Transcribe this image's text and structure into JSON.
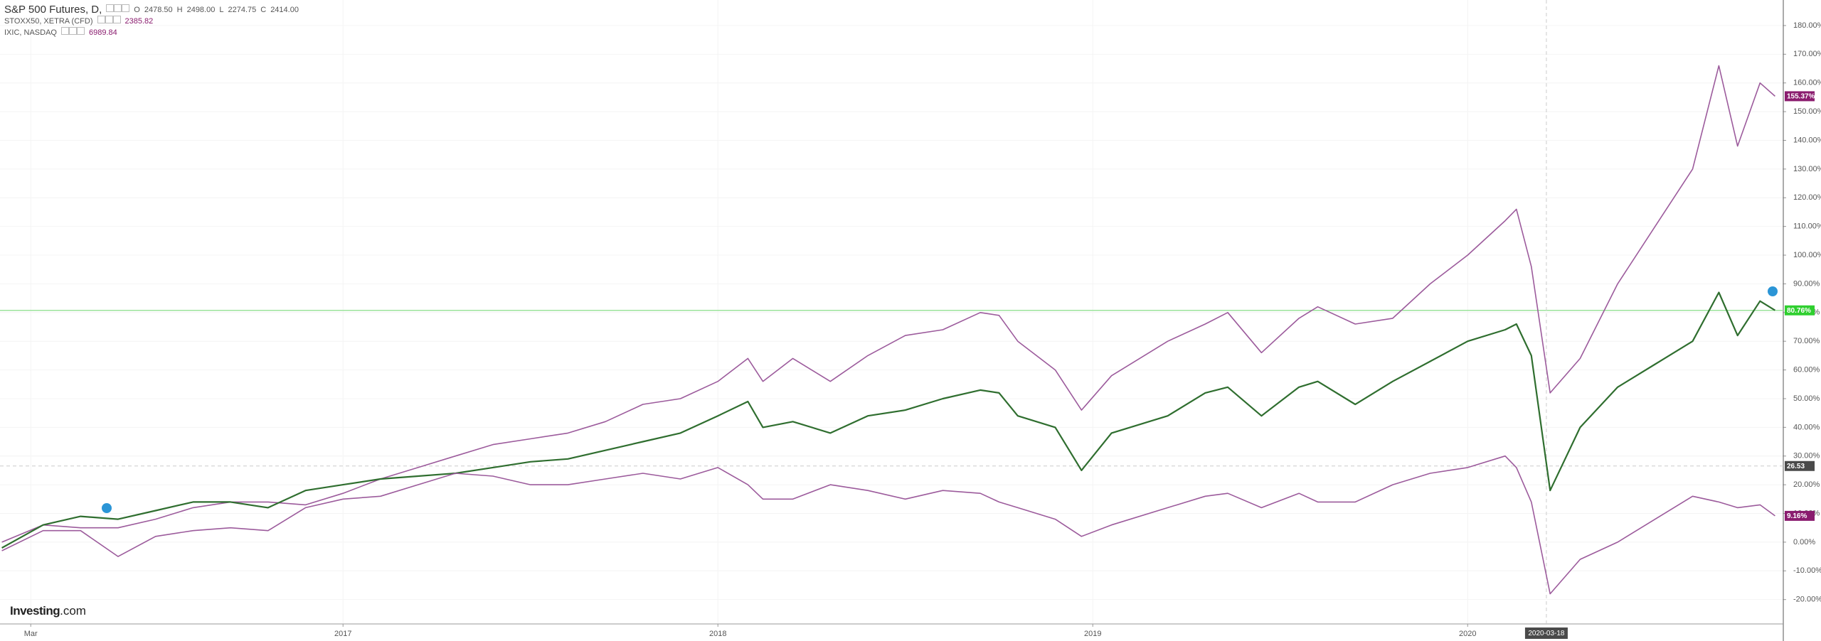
{
  "chart_data": {
    "type": "line",
    "legend": [
      {
        "name": "S&P 500 Futures, D,",
        "fields": [
          {
            "label": "O",
            "value": "2478.50"
          },
          {
            "label": "H",
            "value": "2498.00"
          },
          {
            "label": "L",
            "value": "2274.75"
          },
          {
            "label": "C",
            "value": "2414.00"
          }
        ]
      },
      {
        "name": "STOXX50, XETRA (CFD)",
        "fields": [
          {
            "value": "2385.82"
          }
        ]
      },
      {
        "name": "IXIC, NASDAQ",
        "fields": [
          {
            "value": "6989.84"
          }
        ]
      }
    ],
    "watermark": {
      "brand": "Investing",
      "suffix": ".com"
    },
    "x": [
      2016.09,
      2016.2,
      2016.3,
      2016.4,
      2016.5,
      2016.6,
      2016.7,
      2016.8,
      2016.9,
      2017.0,
      2017.1,
      2017.2,
      2017.3,
      2017.4,
      2017.5,
      2017.6,
      2017.7,
      2017.8,
      2017.9,
      2018.0,
      2018.08,
      2018.12,
      2018.2,
      2018.3,
      2018.4,
      2018.5,
      2018.6,
      2018.7,
      2018.75,
      2018.8,
      2018.9,
      2018.97,
      2019.05,
      2019.2,
      2019.3,
      2019.36,
      2019.45,
      2019.55,
      2019.6,
      2019.7,
      2019.8,
      2019.9,
      2020.0,
      2020.1,
      2020.13,
      2020.17,
      2020.22,
      2020.3,
      2020.4,
      2020.5,
      2020.6,
      2020.67,
      2020.72,
      2020.78,
      2020.82
    ],
    "series": [
      {
        "name": "IXIC, NASDAQ",
        "color": "#9c5b9c",
        "tag_color": "#8a1c6e",
        "last_label": "155.37%",
        "values": [
          0,
          6,
          5,
          5,
          8,
          12,
          14,
          14,
          13,
          17,
          22,
          26,
          30,
          34,
          36,
          38,
          42,
          48,
          50,
          56,
          64,
          56,
          64,
          56,
          65,
          72,
          74,
          80,
          79,
          70,
          60,
          46,
          58,
          70,
          76,
          80,
          66,
          78,
          82,
          76,
          78,
          90,
          100,
          112,
          116,
          96,
          52,
          64,
          90,
          110,
          130,
          166,
          138,
          160,
          155.37
        ]
      },
      {
        "name": "S&P 500 Futures, D,",
        "color": "#2f6e2f",
        "tag_color": "#2fcf2f",
        "last_label": "80.76%",
        "values": [
          -2,
          6,
          9,
          8,
          11,
          14,
          14,
          12,
          18,
          20,
          22,
          23,
          24,
          26,
          28,
          29,
          32,
          35,
          38,
          44,
          49,
          40,
          42,
          38,
          44,
          46,
          50,
          53,
          52,
          44,
          40,
          25,
          38,
          44,
          52,
          54,
          44,
          54,
          56,
          48,
          56,
          63,
          70,
          74,
          76,
          65,
          18,
          40,
          54,
          62,
          70,
          87,
          72,
          84,
          80.76
        ]
      },
      {
        "name": "STOXX50, XETRA (CFD)",
        "color": "#9c5b9c",
        "tag_color": "#8a1c6e",
        "last_label": "9.16%",
        "values": [
          -3,
          4,
          4,
          -5,
          2,
          4,
          5,
          4,
          12,
          15,
          16,
          20,
          24,
          23,
          20,
          20,
          22,
          24,
          22,
          26,
          20,
          15,
          15,
          20,
          18,
          15,
          18,
          17,
          14,
          12,
          8,
          2,
          6,
          12,
          16,
          17,
          12,
          17,
          14,
          14,
          20,
          24,
          26,
          30,
          26,
          14,
          -18,
          -6,
          0,
          8,
          16,
          14,
          12,
          13,
          9.16
        ]
      }
    ],
    "xlim": [
      2016.085,
      2020.842
    ],
    "xticks": [
      {
        "value": 2016.167,
        "label": "Mar"
      },
      {
        "value": 2017,
        "label": "2017"
      },
      {
        "value": 2018,
        "label": "2018"
      },
      {
        "value": 2019,
        "label": "2019"
      },
      {
        "value": 2020,
        "label": "2020"
      }
    ],
    "ylim": [
      -28.5,
      188.9
    ],
    "yticks": [
      {
        "value": -20,
        "label": "-20.00%"
      },
      {
        "value": -10,
        "label": "-10.00%"
      },
      {
        "value": 0,
        "label": "0.00%"
      },
      {
        "value": 10,
        "label": "10.00%"
      },
      {
        "value": 20,
        "label": "20.00%"
      },
      {
        "value": 30,
        "label": "30.00%"
      },
      {
        "value": 40,
        "label": "40.00%"
      },
      {
        "value": 50,
        "label": "50.00%"
      },
      {
        "value": 60,
        "label": "60.00%"
      },
      {
        "value": 70,
        "label": "70.00%"
      },
      {
        "value": 80,
        "label": "80.00%"
      },
      {
        "value": 90,
        "label": "90.00%"
      },
      {
        "value": 100,
        "label": "100.00%"
      },
      {
        "value": 110,
        "label": "110.00%"
      },
      {
        "value": 120,
        "label": "120.00%"
      },
      {
        "value": 130,
        "label": "130.00%"
      },
      {
        "value": 140,
        "label": "140.00%"
      },
      {
        "value": 150,
        "label": "150.00%"
      },
      {
        "value": 160,
        "label": "160.00%"
      },
      {
        "value": 170,
        "label": "170.00%"
      },
      {
        "value": 180,
        "label": "180.00%"
      }
    ],
    "crosshair": {
      "x": 2020.21,
      "x_label": "2020-03-18",
      "y": 26.53,
      "y_label": "26.53"
    },
    "grid": true
  }
}
